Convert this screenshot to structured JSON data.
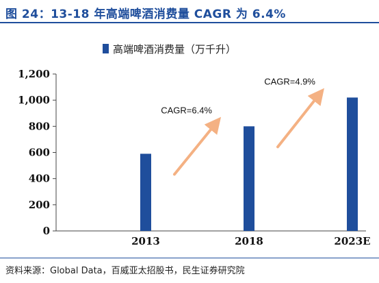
{
  "header": {
    "title": "图 24：13-18 年高端啤酒消费量 CAGR 为 6.4%"
  },
  "chart_data": {
    "type": "bar",
    "categories": [
      "2013",
      "2018",
      "2023E"
    ],
    "series": [
      {
        "name": "高端啤酒消费量（万千升）",
        "values": [
          590,
          800,
          1020
        ]
      }
    ],
    "ylim": [
      0,
      1200
    ],
    "yticks": [
      "0",
      "200",
      "400",
      "600",
      "800",
      "1,000",
      "1,200"
    ],
    "grid": false,
    "legend_position": "top-center",
    "annotations": [
      {
        "text": "CAGR=6.4%",
        "from": "2013",
        "to": "2018"
      },
      {
        "text": "CAGR=4.9%",
        "from": "2018",
        "to": "2023E"
      }
    ],
    "colors": {
      "bar": "#1f4e9c",
      "arrow": "#f4b183",
      "title": "#1f4e9c"
    }
  },
  "footer": {
    "source": "资料来源：Global Data，百威亚太招股书，民生证券研究院"
  }
}
